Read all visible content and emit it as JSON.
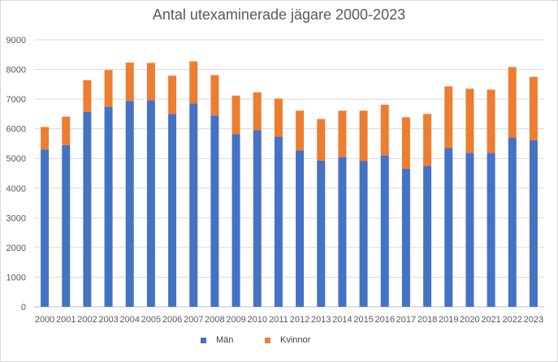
{
  "chart_data": {
    "type": "bar",
    "stacked": true,
    "title": "Antal utexaminerade jägare 2000-2023",
    "xlabel": "",
    "ylabel": "",
    "ylim": [
      0,
      9000
    ],
    "yticks": [
      0,
      1000,
      2000,
      3000,
      4000,
      5000,
      6000,
      7000,
      8000,
      9000
    ],
    "grid": true,
    "legend_position": "bottom",
    "categories": [
      "2000",
      "2001",
      "2002",
      "2003",
      "2004",
      "2005",
      "2006",
      "2007",
      "2008",
      "2009",
      "2010",
      "2011",
      "2012",
      "2013",
      "2014",
      "2015",
      "2016",
      "2017",
      "2018",
      "2019",
      "2020",
      "2021",
      "2022",
      "2023"
    ],
    "series": [
      {
        "name": "Män",
        "color": "#4472c4",
        "values": [
          5300,
          5450,
          6570,
          6740,
          6940,
          6960,
          6500,
          6860,
          6450,
          5820,
          5950,
          5730,
          5270,
          4930,
          5050,
          4910,
          5100,
          4660,
          4750,
          5350,
          5190,
          5190,
          5700,
          5610
        ]
      },
      {
        "name": "Kvinnor",
        "color": "#ed7d31",
        "values": [
          760,
          960,
          1070,
          1240,
          1290,
          1260,
          1290,
          1410,
          1360,
          1300,
          1280,
          1290,
          1340,
          1400,
          1560,
          1700,
          1710,
          1730,
          1750,
          2080,
          2160,
          2130,
          2380,
          2140
        ]
      }
    ]
  }
}
